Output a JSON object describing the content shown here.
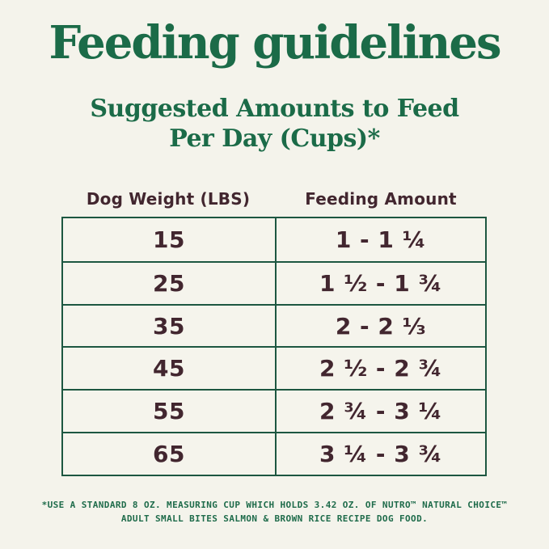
{
  "page": {
    "title": "Feeding guidelines",
    "subtitle_line1": "Suggested Amounts to Feed",
    "subtitle_line2": "Per Day (Cups)*"
  },
  "table": {
    "columns": [
      "Dog Weight (LBS)",
      "Feeding Amount"
    ],
    "rows": [
      {
        "weight": "15",
        "amount": "1 - 1 ¼"
      },
      {
        "weight": "25",
        "amount": "1 ½ - 1 ¾"
      },
      {
        "weight": "35",
        "amount": "2 - 2 ⅓"
      },
      {
        "weight": "45",
        "amount": "2 ½ - 2 ¾"
      },
      {
        "weight": "55",
        "amount": "2 ¾ - 3 ¼"
      },
      {
        "weight": "65",
        "amount": "3 ¼ - 3 ¾"
      }
    ]
  },
  "footnote": {
    "line1": "*USE A STANDARD 8 OZ. MEASURING CUP WHICH HOLDS 3.42 OZ. OF NUTRO™ NATURAL CHOICE™",
    "line2": "ADULT SMALL BITES SALMON & BROWN RICE RECIPE DOG FOOD."
  },
  "colors": {
    "background": "#F4F3EB",
    "heading_green": "#1B6B48",
    "table_border_green": "#1D5741",
    "text_maroon": "#42262F",
    "footnote_green": "#1E6B4A"
  }
}
